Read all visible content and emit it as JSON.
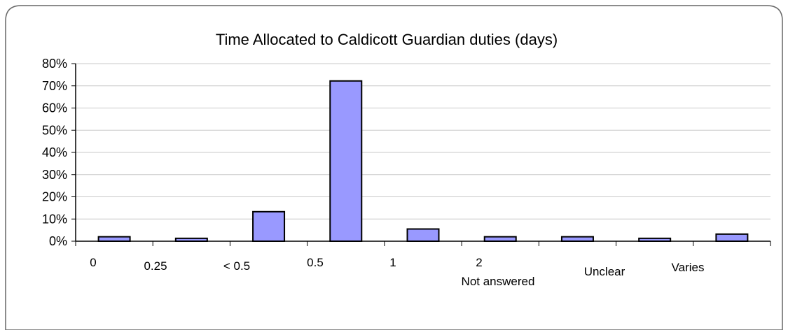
{
  "chart_data": {
    "type": "bar",
    "title": "Time Allocated to Caldicott Guardian duties (days)",
    "xlabel": "",
    "ylabel": "",
    "categories": [
      "0",
      "0.25",
      "< 0.5",
      "0.5",
      "1",
      "2",
      "Not answered",
      "Unclear",
      "Varies"
    ],
    "values": [
      2,
      1.3,
      13.3,
      72.2,
      5.5,
      2,
      2,
      1.3,
      3.2
    ],
    "ylim": [
      0,
      80
    ],
    "yticks": [
      "0%",
      "10%",
      "20%",
      "30%",
      "40%",
      "50%",
      "60%",
      "70%",
      "80%"
    ],
    "y_unit": "%",
    "grid": true,
    "legend": "none",
    "colors": {
      "bar_fill": "#9999ff",
      "bar_stroke": "#000000",
      "grid": "#c8c8c8",
      "axis": "#000000",
      "frame": "#666666"
    }
  }
}
